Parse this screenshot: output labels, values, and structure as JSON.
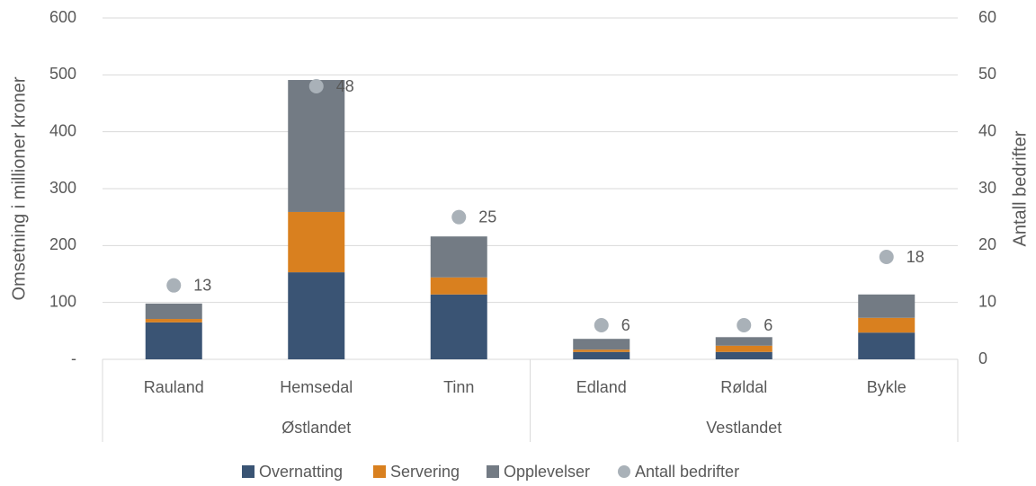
{
  "chart_data": {
    "type": "bar",
    "stacked": true,
    "y_label": "Omsetning i millioner kroner",
    "y2_label": "Antall bedrifter",
    "groups": [
      {
        "name": "Østlandet",
        "categories": [
          "Rauland",
          "Hemsedal",
          "Tinn"
        ]
      },
      {
        "name": "Vestlandet",
        "categories": [
          "Edland",
          "Røldal",
          "Bykle"
        ]
      }
    ],
    "series": [
      {
        "name": "Overnatting",
        "type": "bar",
        "color": "#3a5474",
        "values": [
          65,
          153,
          114,
          13,
          13,
          47
        ]
      },
      {
        "name": "Servering",
        "type": "bar",
        "color": "#d9801f",
        "values": [
          6,
          106,
          30,
          4,
          11,
          26
        ]
      },
      {
        "name": "Opplevelser",
        "type": "bar",
        "color": "#737b84",
        "values": [
          27,
          232,
          72,
          19,
          15,
          41
        ]
      },
      {
        "name": "Antall bedrifter",
        "type": "scatter",
        "axis": "y2",
        "color": "#a9b1b8",
        "values": [
          13,
          48,
          25,
          6,
          6,
          18
        ]
      }
    ],
    "ylim": [
      0,
      600
    ],
    "yticks": [
      {
        "value": 0,
        "label": "-"
      },
      100,
      200,
      300,
      400,
      500,
      600
    ],
    "y2lim": [
      0,
      60
    ],
    "y2ticks": [
      0,
      10,
      20,
      30,
      40,
      50,
      60
    ],
    "grid": true,
    "legend": "bottom"
  }
}
